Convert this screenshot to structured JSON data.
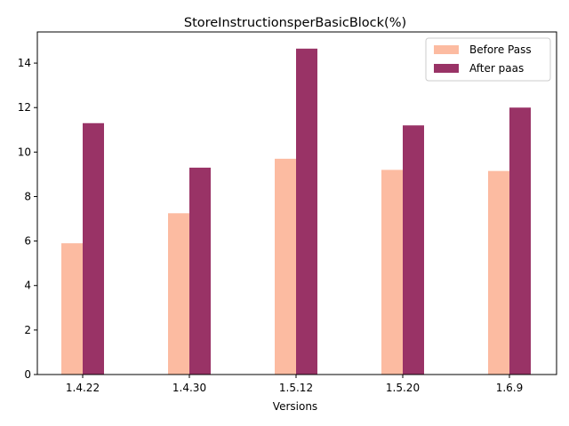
{
  "chart_data": {
    "type": "bar",
    "title": "StoreInstructionsperBasicBlock(%)",
    "xlabel": "Versions",
    "ylabel": "",
    "categories": [
      "1.4.22",
      "1.4.30",
      "1.5.12",
      "1.5.20",
      "1.6.9"
    ],
    "series": [
      {
        "name": "Before Pass",
        "color": "#fcbba1",
        "values": [
          5.9,
          7.25,
          9.7,
          9.2,
          9.15
        ]
      },
      {
        "name": "After paas",
        "color": "#993366",
        "values": [
          11.3,
          9.3,
          14.65,
          11.2,
          12.0
        ]
      }
    ],
    "ylim": [
      0,
      15.4
    ],
    "yticks": [
      "0",
      "2",
      "4",
      "6",
      "8",
      "10",
      "12",
      "14"
    ],
    "grid": false,
    "legend_position": "top-right"
  }
}
